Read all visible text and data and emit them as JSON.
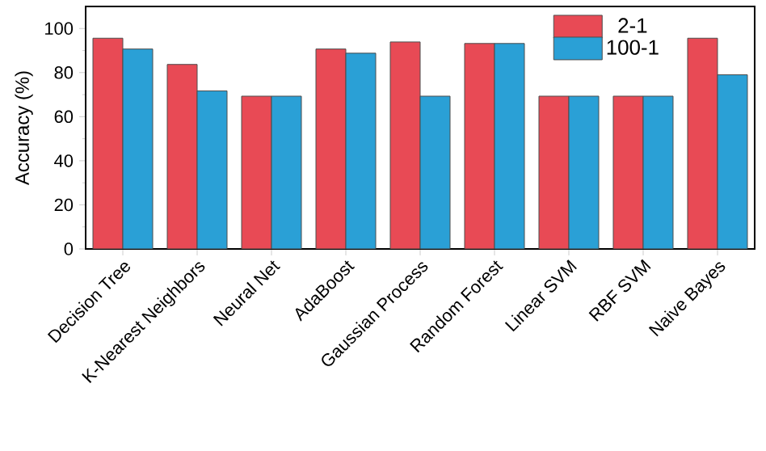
{
  "chart_data": {
    "type": "bar",
    "ylabel": "Accuracy (%)",
    "categories": [
      "Decision Tree",
      "K-Nearest Neighbors",
      "Neural Net",
      "AdaBoost",
      "Gaussian Process",
      "Random Forest",
      "Linear SVM",
      "RBF SVM",
      "Naive Bayes"
    ],
    "series": [
      {
        "name": "2-1",
        "color": "#e84a55",
        "values": [
          95.6,
          83.7,
          69.3,
          90.7,
          93.9,
          93.2,
          69.3,
          69.3,
          95.6
        ]
      },
      {
        "name": "100-1",
        "color": "#2aa0d6",
        "values": [
          90.7,
          71.7,
          69.3,
          88.8,
          69.3,
          93.2,
          69.3,
          69.3,
          79.0
        ]
      }
    ],
    "ylim": [
      0,
      110
    ],
    "yticks": [
      0,
      20,
      40,
      60,
      80,
      100
    ],
    "grid": false,
    "legend": "top right"
  }
}
